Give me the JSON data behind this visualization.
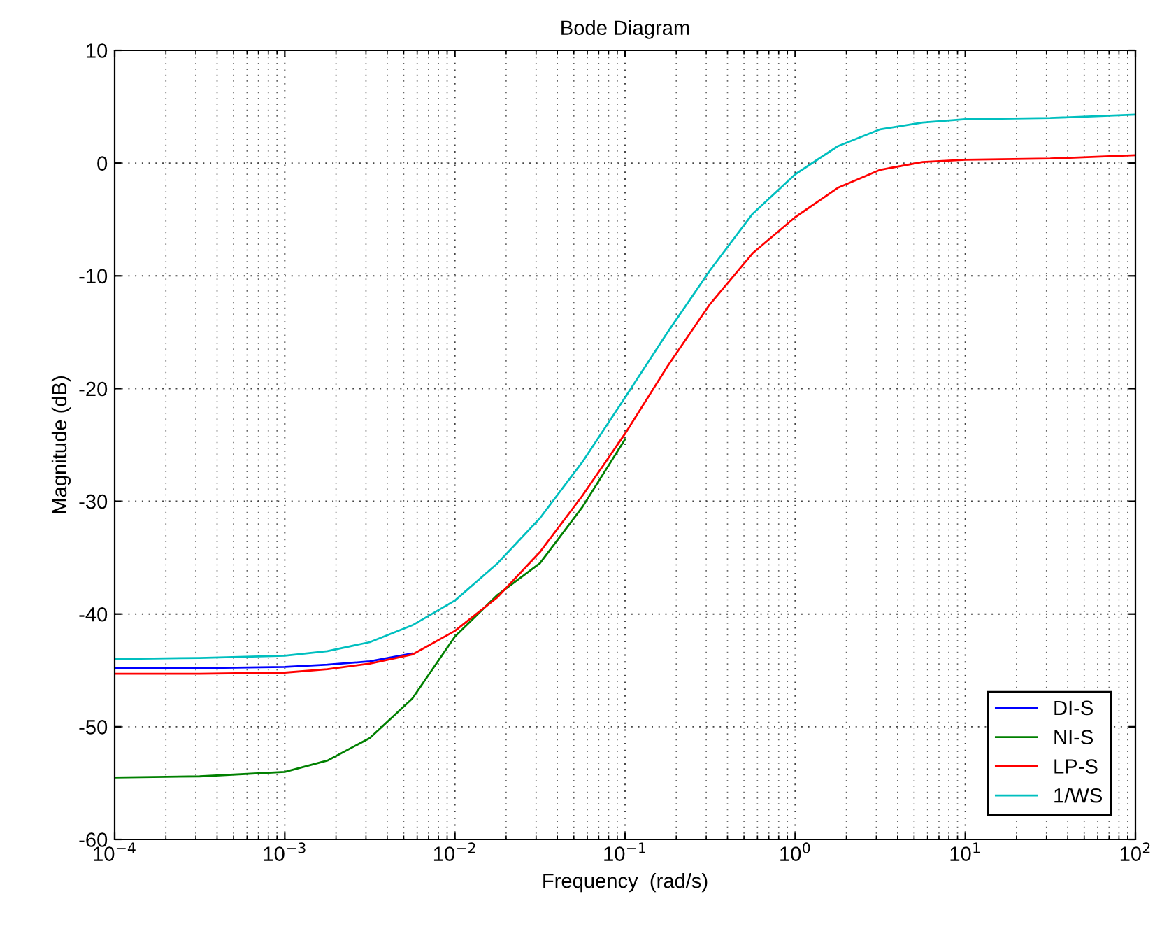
{
  "chart_data": {
    "type": "line",
    "title": "Bode Diagram",
    "xlabel": "Frequency  (rad/s)",
    "ylabel": "Magnitude (dB)",
    "x": [
      0.0001,
      0.000316,
      0.001,
      0.00178,
      0.00316,
      0.00562,
      0.01,
      0.0178,
      0.0316,
      0.0562,
      0.1,
      0.178,
      0.316,
      0.562,
      1,
      1.78,
      3.16,
      5.62,
      10,
      31.6,
      100
    ],
    "series": [
      {
        "name": "DI-S",
        "color": "#0000ff",
        "values": [
          -44.8,
          -44.8,
          -44.7,
          -44.5,
          -44.2,
          -43.5,
          null,
          null,
          null,
          null,
          null,
          null,
          null,
          null,
          null,
          null,
          null,
          null,
          null,
          null,
          null
        ]
      },
      {
        "name": "NI-S",
        "color": "#008000",
        "values": [
          -54.5,
          -54.4,
          -54.0,
          -53.0,
          -51.0,
          -47.5,
          -42.0,
          -38.3,
          -35.5,
          -30.5,
          -24.5,
          null,
          null,
          null,
          null,
          null,
          null,
          null,
          null,
          null,
          null
        ]
      },
      {
        "name": "LP-S",
        "color": "#ff0000",
        "values": [
          -45.3,
          -45.3,
          -45.2,
          -44.9,
          -44.4,
          -43.6,
          -41.5,
          -38.5,
          -34.5,
          -29.5,
          -24,
          -18,
          -12.5,
          -8,
          -4.8,
          -2.2,
          -0.6,
          0.1,
          0.3,
          0.4,
          0.7
        ]
      },
      {
        "name": "1/WS",
        "color": "#00bfbf",
        "values": [
          -44.0,
          -43.9,
          -43.7,
          -43.3,
          -42.5,
          -41.0,
          -38.8,
          -35.5,
          -31.5,
          -26.5,
          -20.8,
          -15,
          -9.5,
          -4.5,
          -1.0,
          1.5,
          3.0,
          3.6,
          3.9,
          4.0,
          4.3
        ]
      }
    ],
    "log": "x",
    "xlim": [
      0.0001,
      100
    ],
    "ylim": [
      -60,
      10
    ],
    "xticks": [
      {
        "value": 0.0001,
        "label": "10$^{−4}$"
      },
      {
        "value": 0.001,
        "label": "10$^{−3}$"
      },
      {
        "value": 0.01,
        "label": "10$^{−2}$"
      },
      {
        "value": 0.1,
        "label": "10$^{−1}$"
      },
      {
        "value": 1,
        "label": "10$^{0}$"
      },
      {
        "value": 10,
        "label": "10$^{1}$"
      },
      {
        "value": 100,
        "label": "10$^{2}$"
      }
    ],
    "yticks": [
      -60,
      -50,
      -40,
      -30,
      -20,
      -10,
      0,
      10
    ],
    "grid": true,
    "legend": "bottom right",
    "marker": "none",
    "line_style": "solid"
  }
}
